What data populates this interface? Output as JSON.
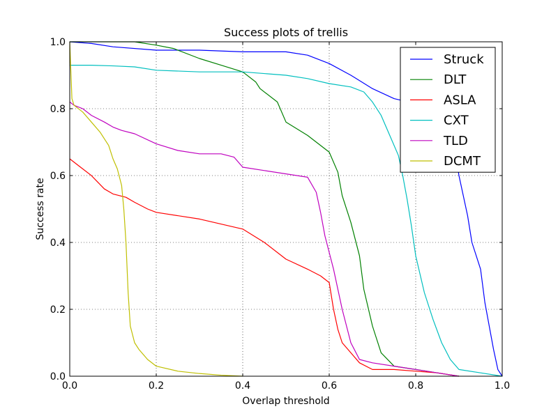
{
  "chart_data": {
    "type": "line",
    "title": "Success plots of trellis",
    "xlabel": "Overlap threshold",
    "ylabel": "Success rate",
    "xlim": [
      0,
      1
    ],
    "ylim": [
      0,
      1
    ],
    "xticks": [
      0,
      0.2,
      0.4,
      0.6,
      0.8,
      1.0
    ],
    "yticks": [
      0,
      0.2,
      0.4,
      0.6,
      0.8,
      1.0
    ],
    "xtick_labels": [
      "0.0",
      "0.2",
      "0.4",
      "0.6",
      "0.8",
      "1.0"
    ],
    "ytick_labels": [
      "0.0",
      "0.2",
      "0.4",
      "0.6",
      "0.8",
      "1.0"
    ],
    "grid": true,
    "legend_position": "top-right",
    "series": [
      {
        "name": "Struck",
        "color": "#0000ff",
        "x": [
          0.0,
          0.05,
          0.1,
          0.2,
          0.3,
          0.4,
          0.5,
          0.55,
          0.6,
          0.65,
          0.7,
          0.75,
          0.8,
          0.85,
          0.87,
          0.89,
          0.9,
          0.92,
          0.93,
          0.95,
          0.96,
          0.97,
          0.98,
          0.99,
          1.0
        ],
        "y": [
          1.0,
          0.995,
          0.985,
          0.975,
          0.975,
          0.97,
          0.97,
          0.96,
          0.935,
          0.9,
          0.86,
          0.83,
          0.815,
          0.8,
          0.76,
          0.68,
          0.6,
          0.48,
          0.4,
          0.32,
          0.22,
          0.15,
          0.08,
          0.02,
          0.0
        ]
      },
      {
        "name": "DLT",
        "color": "#008000",
        "x": [
          0.0,
          0.15,
          0.2,
          0.24,
          0.3,
          0.35,
          0.4,
          0.43,
          0.44,
          0.48,
          0.5,
          0.55,
          0.6,
          0.62,
          0.63,
          0.65,
          0.67,
          0.68,
          0.7,
          0.72,
          0.75,
          0.8,
          0.85,
          0.9
        ],
        "y": [
          1.0,
          1.0,
          0.99,
          0.98,
          0.95,
          0.93,
          0.91,
          0.88,
          0.86,
          0.82,
          0.76,
          0.72,
          0.67,
          0.61,
          0.54,
          0.46,
          0.36,
          0.26,
          0.15,
          0.07,
          0.03,
          0.02,
          0.01,
          0.0
        ]
      },
      {
        "name": "ASLA",
        "color": "#ff0000",
        "x": [
          0.0,
          0.02,
          0.05,
          0.08,
          0.1,
          0.13,
          0.15,
          0.18,
          0.2,
          0.3,
          0.4,
          0.45,
          0.5,
          0.55,
          0.58,
          0.6,
          0.61,
          0.62,
          0.63,
          0.65,
          0.67,
          0.7,
          0.75,
          0.8,
          0.85,
          0.9
        ],
        "y": [
          0.65,
          0.63,
          0.6,
          0.56,
          0.545,
          0.535,
          0.52,
          0.5,
          0.49,
          0.47,
          0.44,
          0.4,
          0.35,
          0.32,
          0.3,
          0.28,
          0.2,
          0.14,
          0.1,
          0.07,
          0.04,
          0.02,
          0.02,
          0.015,
          0.01,
          0.0
        ]
      },
      {
        "name": "CXT",
        "color": "#00bfbf",
        "x": [
          0.0,
          0.05,
          0.1,
          0.15,
          0.2,
          0.3,
          0.4,
          0.5,
          0.55,
          0.6,
          0.65,
          0.68,
          0.7,
          0.72,
          0.74,
          0.76,
          0.77,
          0.78,
          0.79,
          0.8,
          0.82,
          0.84,
          0.86,
          0.88,
          0.9,
          0.95,
          1.0
        ],
        "y": [
          0.93,
          0.93,
          0.928,
          0.925,
          0.915,
          0.91,
          0.91,
          0.9,
          0.89,
          0.875,
          0.865,
          0.85,
          0.82,
          0.78,
          0.72,
          0.66,
          0.6,
          0.53,
          0.45,
          0.36,
          0.25,
          0.17,
          0.1,
          0.05,
          0.02,
          0.01,
          0.0
        ]
      },
      {
        "name": "TLD",
        "color": "#bf00bf",
        "x": [
          0.0,
          0.01,
          0.03,
          0.05,
          0.08,
          0.1,
          0.12,
          0.15,
          0.2,
          0.25,
          0.3,
          0.35,
          0.38,
          0.4,
          0.45,
          0.55,
          0.57,
          0.58,
          0.59,
          0.6,
          0.61,
          0.62,
          0.63,
          0.64,
          0.65,
          0.67,
          0.7,
          0.75,
          0.8,
          0.85,
          0.9
        ],
        "y": [
          0.82,
          0.81,
          0.8,
          0.78,
          0.76,
          0.745,
          0.735,
          0.725,
          0.695,
          0.675,
          0.665,
          0.665,
          0.655,
          0.625,
          0.615,
          0.595,
          0.55,
          0.49,
          0.42,
          0.37,
          0.32,
          0.26,
          0.2,
          0.15,
          0.1,
          0.05,
          0.04,
          0.03,
          0.02,
          0.01,
          0.0
        ]
      },
      {
        "name": "DCMT",
        "color": "#bfbf00",
        "x": [
          0.0,
          0.005,
          0.01,
          0.03,
          0.05,
          0.07,
          0.09,
          0.1,
          0.11,
          0.12,
          0.125,
          0.13,
          0.135,
          0.14,
          0.15,
          0.16,
          0.18,
          0.2,
          0.25,
          0.3,
          0.35,
          0.4
        ],
        "y": [
          1.0,
          0.83,
          0.81,
          0.79,
          0.76,
          0.73,
          0.69,
          0.65,
          0.62,
          0.57,
          0.5,
          0.4,
          0.25,
          0.15,
          0.1,
          0.08,
          0.05,
          0.03,
          0.015,
          0.008,
          0.003,
          0.0
        ]
      }
    ]
  }
}
